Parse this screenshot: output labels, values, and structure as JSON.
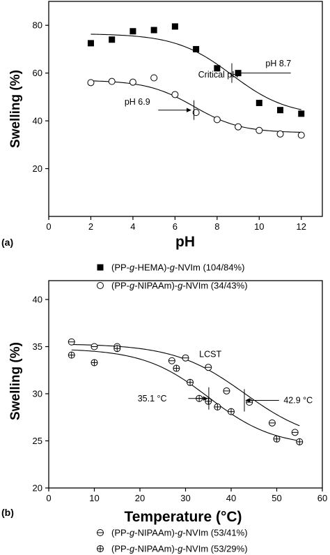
{
  "chart_data": [
    {
      "panel": "(a)",
      "type": "scatter",
      "xlabel": "pH",
      "ylabel": "Swelling (%)",
      "xlim": [
        0,
        13
      ],
      "ylim": [
        0,
        90
      ],
      "xticks": [
        0,
        2,
        4,
        6,
        8,
        10,
        12
      ],
      "yticks": [
        20,
        40,
        60,
        80
      ],
      "series": [
        {
          "name_parts": [
            "(PP-",
            "g",
            "-HEMA)-",
            "g",
            "-NVIm (104/84%)"
          ],
          "marker": "filled-square",
          "x": [
            2,
            3,
            4,
            5,
            6,
            7,
            8,
            9,
            10,
            11,
            12
          ],
          "y": [
            72.5,
            74,
            77.5,
            78,
            79.5,
            70,
            62,
            60,
            47.5,
            44.5,
            43
          ],
          "fit": {
            "model": "sigmoid",
            "top": 76.5,
            "bottom": 42,
            "x0": 8.7,
            "slope": 0.75,
            "xrange": [
              2,
              12
            ]
          }
        },
        {
          "name_parts": [
            "(PP-",
            "g",
            "-NIPAAm)-",
            "g",
            "-NVIm (34/43%)"
          ],
          "marker": "open-circle",
          "x": [
            2,
            3,
            4,
            5,
            6,
            7,
            8,
            9,
            10,
            11,
            12
          ],
          "y": [
            56,
            56.5,
            56.2,
            58,
            51,
            43.5,
            40.5,
            37.5,
            36,
            34.5,
            34
          ],
          "fit": {
            "model": "sigmoid",
            "top": 57,
            "bottom": 35,
            "x0": 6.9,
            "slope": 0.9,
            "xrange": [
              2,
              12
            ]
          }
        }
      ],
      "annotations": [
        {
          "text": "pH 8.7",
          "x": 8.7,
          "y": 60.5
        },
        {
          "text": "Critical pH",
          "x": 6.9,
          "y": 58
        },
        {
          "text": "pH 6.9",
          "x": 6.9,
          "y": 47
        }
      ]
    },
    {
      "panel": "(b)",
      "type": "scatter",
      "xlabel": "Temperature (°C)",
      "ylabel": "Swelling (%)",
      "xlim": [
        0,
        60
      ],
      "ylim": [
        20,
        42
      ],
      "xticks": [
        0,
        10,
        20,
        30,
        40,
        50,
        60
      ],
      "yticks": [
        20,
        25,
        30,
        35,
        40
      ],
      "series": [
        {
          "name_parts": [
            "(PP-",
            "g",
            "-NIPAAm)-",
            "g",
            "-NVIm (53/41%)"
          ],
          "marker": "circle-minus",
          "x": [
            5,
            10,
            15,
            27,
            30,
            35,
            39,
            44,
            49,
            54
          ],
          "y": [
            35.5,
            35,
            35,
            33.5,
            33.8,
            32.8,
            30.3,
            29.1,
            26.9,
            25.9
          ],
          "fit": {
            "model": "sigmoid",
            "top": 35.3,
            "bottom": 24.8,
            "x0": 42.9,
            "slope": 0.13,
            "xrange": [
              5,
              55
            ]
          }
        },
        {
          "name_parts": [
            "(PP-",
            "g",
            "-NIPAAm)-",
            "g",
            "-NVIm (53/29%)"
          ],
          "marker": "circle-plus",
          "x": [
            5,
            10,
            15,
            28,
            31,
            33,
            35,
            37,
            40,
            50,
            55
          ],
          "y": [
            34.1,
            33.3,
            34.8,
            32.7,
            31.2,
            29.5,
            29.2,
            28.6,
            28.1,
            25.2,
            24.9
          ],
          "fit": {
            "model": "sigmoid",
            "top": 34.8,
            "bottom": 24.4,
            "x0": 35.1,
            "slope": 0.14,
            "xrange": [
              5,
              55
            ]
          }
        }
      ],
      "annotations": [
        {
          "text": "LCST",
          "x": 38,
          "y": 33.5
        },
        {
          "text": "35.1 °C",
          "x": 35.1,
          "y": 29.5
        },
        {
          "text": "42.9 °C",
          "x": 42.9,
          "y": 29.3
        }
      ]
    }
  ]
}
